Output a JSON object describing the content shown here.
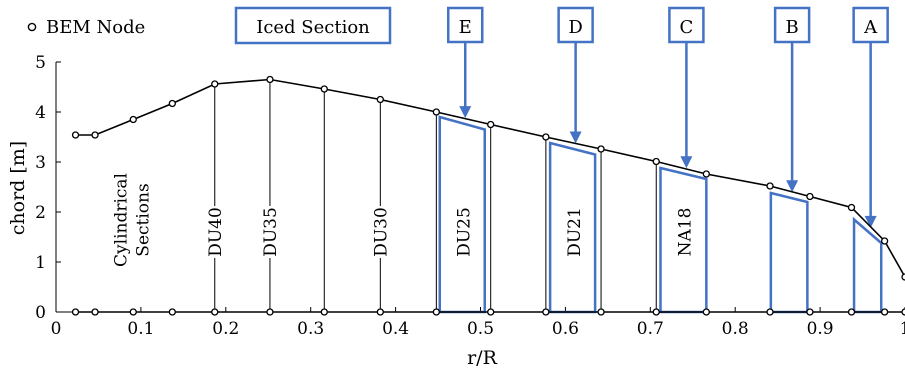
{
  "chart_data": {
    "type": "line",
    "xlabel": "r/R",
    "ylabel": "chord [m]",
    "xlim": [
      0,
      1
    ],
    "ylim": [
      0,
      5
    ],
    "xticks": [
      "0",
      "0.1",
      "0.2",
      "0.3",
      "0.4",
      "0.5",
      "0.6",
      "0.7",
      "0.8",
      "0.9",
      "1"
    ],
    "yticks": [
      "0",
      "1",
      "2",
      "3",
      "4",
      "5"
    ],
    "legend": {
      "marker_label": "BEM Node",
      "box_label": "Iced Section",
      "placement": "top-left"
    },
    "series": [
      {
        "name": "BEM Node",
        "x": [
          0.023,
          0.046,
          0.091,
          0.137,
          0.187,
          0.252,
          0.316,
          0.382,
          0.448,
          0.512,
          0.577,
          0.642,
          0.707,
          0.766,
          0.841,
          0.888,
          0.937,
          0.976,
          1.0
        ],
        "y": [
          3.54,
          3.54,
          3.85,
          4.17,
          4.56,
          4.65,
          4.46,
          4.25,
          4.0,
          3.75,
          3.5,
          3.26,
          3.01,
          2.76,
          2.52,
          2.31,
          2.09,
          1.42,
          0.7
        ]
      }
    ],
    "airfoil_sections": [
      {
        "label": "Cylindrical\nSections",
        "x": 0.09,
        "line": false
      },
      {
        "label": "DU40",
        "x": 0.187,
        "line": true
      },
      {
        "label": "DU35",
        "x": 0.252,
        "line": true
      },
      {
        "label": "DU30",
        "x": 0.382,
        "line": true
      },
      {
        "label": "DU25",
        "x": 0.48,
        "line": false
      },
      {
        "label": "DU21",
        "x": 0.61,
        "line": false
      },
      {
        "label": "NA18",
        "x": 0.74,
        "line": false
      }
    ],
    "section_lines_x": [
      0.252,
      0.316,
      0.382,
      0.448,
      0.512,
      0.577,
      0.642,
      0.707
    ],
    "iced_sections": [
      {
        "label": "E",
        "x0": 0.452,
        "x1": 0.505,
        "y_top": [
          3.9,
          3.65
        ]
      },
      {
        "label": "D",
        "x0": 0.582,
        "x1": 0.635,
        "y_top": [
          3.38,
          3.15
        ]
      },
      {
        "label": "C",
        "x0": 0.712,
        "x1": 0.766,
        "y_top": [
          2.88,
          2.66
        ]
      },
      {
        "label": "B",
        "x0": 0.842,
        "x1": 0.885,
        "y_top": [
          2.38,
          2.2
        ]
      },
      {
        "label": "A",
        "x0": 0.94,
        "x1": 0.972,
        "y_top": [
          1.85,
          1.38
        ]
      }
    ],
    "colors": {
      "curve": "#000000",
      "iced": "#4472c4"
    }
  }
}
